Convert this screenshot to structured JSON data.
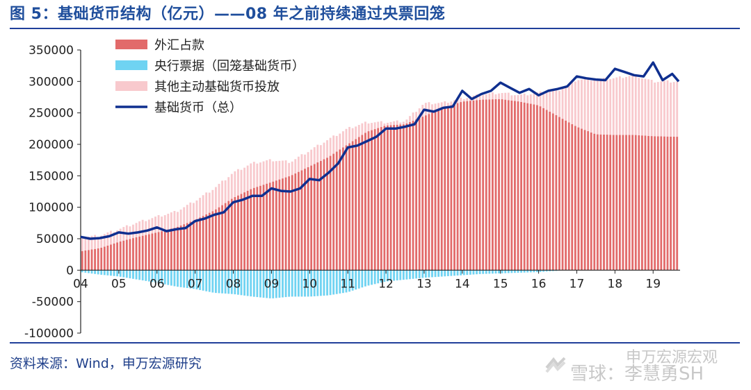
{
  "header": {
    "title": "图 5：基础货币结构（亿元）——08 年之前持续通过央票回笼"
  },
  "footer": {
    "source": "资料来源：Wind，申万宏源研究"
  },
  "watermark": {
    "line1": "申万宏源宏观",
    "line2": "雪球：李慧勇SH"
  },
  "colors": {
    "fx": "#e26a6a",
    "bills": "#6fd3f2",
    "other": "#f8c9cd",
    "base": "#0f2f8f",
    "title": "#1f4e9c"
  },
  "chart_data": {
    "type": "bar",
    "subtype": "stacked bar with line",
    "title": "图 5：基础货币结构（亿元）——08 年之前持续通过央票回笼",
    "xlabel": "",
    "ylabel": "",
    "x_tick_labels": [
      "04",
      "05",
      "06",
      "07",
      "08",
      "09",
      "10",
      "11",
      "12",
      "13",
      "14",
      "15",
      "16",
      "17",
      "18",
      "19"
    ],
    "y_tick_labels": [
      "350000",
      "300000",
      "250000",
      "200000",
      "150000",
      "100000",
      "50000",
      "0",
      "-50000",
      "-100000"
    ],
    "ylim": [
      -100000,
      350000
    ],
    "grid": false,
    "legend_position": "top-left",
    "time_unit": "year (quarterly series; x-values given as fractional years)",
    "series": [
      {
        "name": "外汇占款",
        "kind": "bar",
        "points": [
          [
            2004.0,
            30000
          ],
          [
            2004.5,
            35000
          ],
          [
            2005.0,
            45000
          ],
          [
            2005.5,
            53000
          ],
          [
            2006.0,
            60000
          ],
          [
            2006.5,
            68000
          ],
          [
            2007.0,
            80000
          ],
          [
            2007.5,
            95000
          ],
          [
            2008.0,
            115000
          ],
          [
            2008.5,
            130000
          ],
          [
            2009.0,
            140000
          ],
          [
            2009.5,
            150000
          ],
          [
            2010.0,
            165000
          ],
          [
            2010.5,
            180000
          ],
          [
            2011.0,
            200000
          ],
          [
            2011.5,
            220000
          ],
          [
            2012.0,
            230000
          ],
          [
            2012.5,
            232000
          ],
          [
            2013.0,
            245000
          ],
          [
            2013.5,
            258000
          ],
          [
            2014.0,
            268000
          ],
          [
            2014.5,
            271000
          ],
          [
            2015.0,
            272000
          ],
          [
            2015.5,
            268000
          ],
          [
            2016.0,
            262000
          ],
          [
            2016.5,
            245000
          ],
          [
            2017.0,
            228000
          ],
          [
            2017.5,
            216000
          ],
          [
            2018.0,
            215000
          ],
          [
            2018.5,
            215000
          ],
          [
            2019.0,
            213000
          ],
          [
            2019.67,
            212000
          ]
        ]
      },
      {
        "name": "央行票据（回笼基础货币）",
        "kind": "bar",
        "points": [
          [
            2004.0,
            -3000
          ],
          [
            2004.5,
            -7000
          ],
          [
            2005.0,
            -10000
          ],
          [
            2005.5,
            -15000
          ],
          [
            2006.0,
            -20000
          ],
          [
            2006.5,
            -26000
          ],
          [
            2007.0,
            -30000
          ],
          [
            2007.5,
            -36000
          ],
          [
            2008.0,
            -38000
          ],
          [
            2008.5,
            -42000
          ],
          [
            2009.0,
            -45000
          ],
          [
            2009.5,
            -42000
          ],
          [
            2010.0,
            -42000
          ],
          [
            2010.5,
            -40000
          ],
          [
            2011.0,
            -35000
          ],
          [
            2011.5,
            -25000
          ],
          [
            2012.0,
            -18000
          ],
          [
            2012.5,
            -15000
          ],
          [
            2013.0,
            -12000
          ],
          [
            2013.5,
            -10000
          ],
          [
            2014.0,
            -8000
          ],
          [
            2014.5,
            -6000
          ],
          [
            2015.0,
            -5000
          ],
          [
            2015.5,
            -4000
          ],
          [
            2016.0,
            -3000
          ],
          [
            2016.5,
            -1000
          ],
          [
            2016.6,
            0
          ],
          [
            2019.67,
            0
          ]
        ]
      },
      {
        "name": "其他主动基础货币投放",
        "kind": "bar",
        "points": [
          [
            2004.0,
            22000
          ],
          [
            2004.5,
            20000
          ],
          [
            2005.0,
            20000
          ],
          [
            2005.5,
            23000
          ],
          [
            2006.0,
            25000
          ],
          [
            2006.5,
            25000
          ],
          [
            2007.0,
            30000
          ],
          [
            2007.5,
            35000
          ],
          [
            2008.0,
            40000
          ],
          [
            2008.5,
            40000
          ],
          [
            2009.0,
            35000
          ],
          [
            2009.5,
            22000
          ],
          [
            2010.0,
            25000
          ],
          [
            2010.5,
            28000
          ],
          [
            2011.0,
            25000
          ],
          [
            2011.5,
            15000
          ],
          [
            2012.0,
            5000
          ],
          [
            2012.5,
            5000
          ],
          [
            2013.0,
            20000
          ],
          [
            2013.5,
            8000
          ],
          [
            2014.0,
            5000
          ],
          [
            2014.5,
            8000
          ],
          [
            2015.0,
            10000
          ],
          [
            2015.5,
            10000
          ],
          [
            2016.0,
            20000
          ],
          [
            2016.5,
            40000
          ],
          [
            2017.0,
            75000
          ],
          [
            2017.5,
            87000
          ],
          [
            2018.0,
            90000
          ],
          [
            2018.5,
            95000
          ],
          [
            2019.0,
            87000
          ],
          [
            2019.67,
            88000
          ]
        ]
      },
      {
        "name": "基础货币（总）",
        "kind": "line",
        "points": [
          [
            2004.0,
            53000
          ],
          [
            2004.25,
            50000
          ],
          [
            2004.5,
            51000
          ],
          [
            2004.75,
            54000
          ],
          [
            2005.0,
            60000
          ],
          [
            2005.25,
            58000
          ],
          [
            2005.5,
            60000
          ],
          [
            2005.75,
            63000
          ],
          [
            2006.0,
            68000
          ],
          [
            2006.25,
            62000
          ],
          [
            2006.5,
            65000
          ],
          [
            2006.75,
            67000
          ],
          [
            2007.0,
            78000
          ],
          [
            2007.25,
            82000
          ],
          [
            2007.5,
            88000
          ],
          [
            2007.75,
            92000
          ],
          [
            2008.0,
            108000
          ],
          [
            2008.25,
            112000
          ],
          [
            2008.5,
            118000
          ],
          [
            2008.75,
            118000
          ],
          [
            2009.0,
            130000
          ],
          [
            2009.25,
            126000
          ],
          [
            2009.5,
            125000
          ],
          [
            2009.75,
            130000
          ],
          [
            2010.0,
            145000
          ],
          [
            2010.25,
            143000
          ],
          [
            2010.5,
            155000
          ],
          [
            2010.75,
            170000
          ],
          [
            2011.0,
            195000
          ],
          [
            2011.25,
            198000
          ],
          [
            2011.5,
            205000
          ],
          [
            2011.75,
            212000
          ],
          [
            2012.0,
            225000
          ],
          [
            2012.25,
            225000
          ],
          [
            2012.5,
            228000
          ],
          [
            2012.75,
            232000
          ],
          [
            2013.0,
            255000
          ],
          [
            2013.25,
            252000
          ],
          [
            2013.5,
            258000
          ],
          [
            2013.75,
            260000
          ],
          [
            2014.0,
            285000
          ],
          [
            2014.25,
            272000
          ],
          [
            2014.5,
            280000
          ],
          [
            2014.75,
            285000
          ],
          [
            2015.0,
            298000
          ],
          [
            2015.25,
            290000
          ],
          [
            2015.5,
            282000
          ],
          [
            2015.75,
            288000
          ],
          [
            2016.0,
            278000
          ],
          [
            2016.25,
            285000
          ],
          [
            2016.5,
            288000
          ],
          [
            2016.75,
            292000
          ],
          [
            2017.0,
            308000
          ],
          [
            2017.25,
            305000
          ],
          [
            2017.5,
            303000
          ],
          [
            2017.75,
            302000
          ],
          [
            2018.0,
            320000
          ],
          [
            2018.25,
            315000
          ],
          [
            2018.5,
            310000
          ],
          [
            2018.75,
            308000
          ],
          [
            2019.0,
            330000
          ],
          [
            2019.25,
            302000
          ],
          [
            2019.5,
            312000
          ],
          [
            2019.67,
            300000
          ]
        ]
      }
    ]
  }
}
